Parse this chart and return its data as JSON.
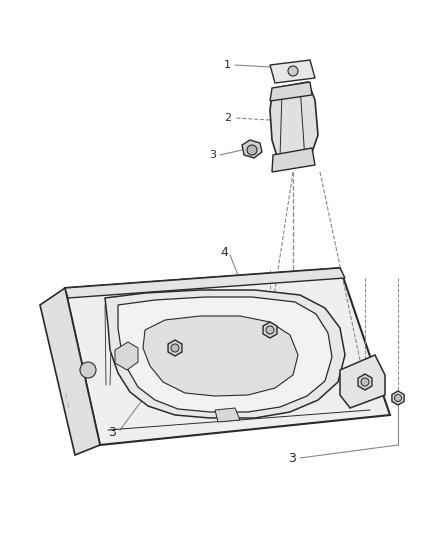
{
  "bg_color": "#ffffff",
  "line_color": "#2a2a2a",
  "fill_color": "#f5f5f5",
  "leader_color": "#888888",
  "fig_width": 4.38,
  "fig_height": 5.33,
  "dpi": 100
}
